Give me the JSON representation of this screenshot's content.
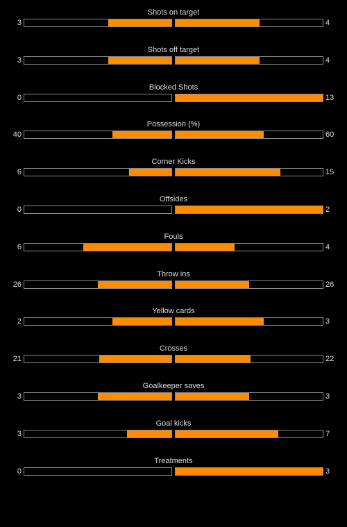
{
  "colors": {
    "background": "#000000",
    "bar_fill": "#ff8c00",
    "bar_border": "#8c8c8c",
    "text": "#dcdcdc"
  },
  "stats": [
    {
      "label": "Shots on target",
      "home": "3",
      "away": "4"
    },
    {
      "label": "Shots off target",
      "home": "3",
      "away": "4"
    },
    {
      "label": "Blocked Shots",
      "home": "0",
      "away": "13"
    },
    {
      "label": "Possession (%)",
      "home": "40",
      "away": "60"
    },
    {
      "label": "Corner Kicks",
      "home": "6",
      "away": "15"
    },
    {
      "label": "Offsides",
      "home": "0",
      "away": "2"
    },
    {
      "label": "Fouls",
      "home": "6",
      "away": "4"
    },
    {
      "label": "Throw ins",
      "home": "26",
      "away": "26"
    },
    {
      "label": "Yellow cards",
      "home": "2",
      "away": "3"
    },
    {
      "label": "Crosses",
      "home": "21",
      "away": "22"
    },
    {
      "label": "Goalkeeper saves",
      "home": "3",
      "away": "3"
    },
    {
      "label": "Goal kicks",
      "home": "3",
      "away": "7"
    },
    {
      "label": "Treatments",
      "home": "0",
      "away": "3"
    }
  ]
}
